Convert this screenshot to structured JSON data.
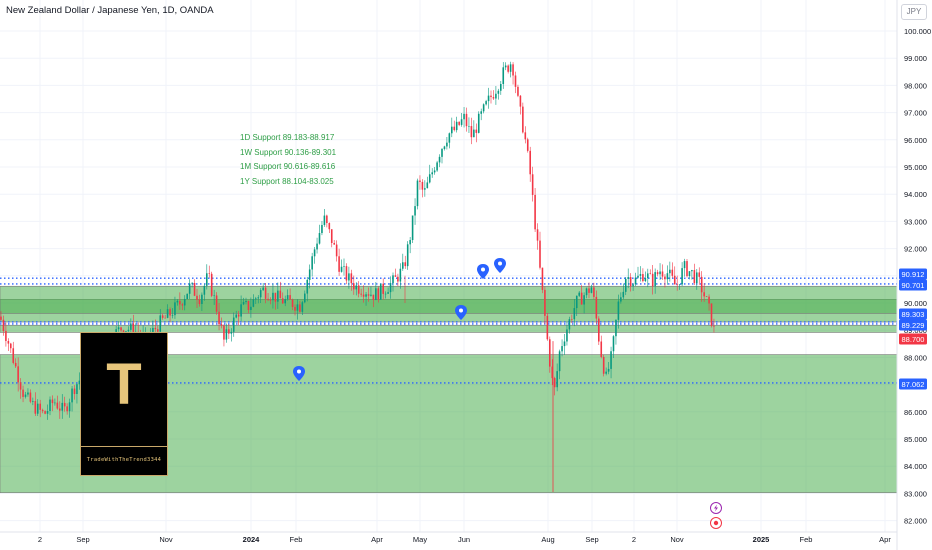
{
  "header": {
    "title": "New Zealand Dollar / Japanese Yen, 1D, OANDA",
    "currency_button": "JPY"
  },
  "logo": {
    "letter": "T",
    "caption": "TradeWithTheTrend3344"
  },
  "annotations": [
    "1D Support 89.183-88.917",
    "1W Support 90.136-89.301",
    "1M Support 90.616-89.616",
    "1Y Support 88.104-83.025"
  ],
  "chart_data": {
    "type": "candlestick",
    "symbol": "NZDJPY",
    "timeframe": "1D",
    "y_ticks": [
      "100.000",
      "99.000",
      "98.000",
      "97.000",
      "96.000",
      "95.000",
      "94.000",
      "93.000",
      "92.000",
      "91.000",
      "90.000",
      "89.000",
      "88.000",
      "87.000",
      "86.000",
      "85.000",
      "84.000",
      "83.000",
      "82.000"
    ],
    "ylim": [
      81.8,
      100.3
    ],
    "x_ticks": [
      "2",
      "Sep",
      "Nov",
      "2024",
      "Feb",
      "Apr",
      "May",
      "Jun",
      "Aug",
      "Sep",
      "2",
      "Nov",
      "2025",
      "Feb",
      "Apr"
    ],
    "price_labels": [
      {
        "value": 90.912,
        "text": "90.912",
        "color": "#2962ff"
      },
      {
        "value": 90.701,
        "text": "90.701",
        "color": "#2962ff"
      },
      {
        "value": 89.303,
        "text": "89.303",
        "color": "#2962ff"
      },
      {
        "value": 89.229,
        "text": "89.229",
        "color": "#2962ff"
      },
      {
        "value": 88.7,
        "text": "88.700",
        "color": "#f23645"
      },
      {
        "value": 87.062,
        "text": "87.062",
        "color": "#2962ff"
      }
    ],
    "support_zones": [
      {
        "name": "1D Support",
        "high": 89.183,
        "low": 88.917
      },
      {
        "name": "1W Support",
        "high": 90.136,
        "low": 89.301
      },
      {
        "name": "1M Support",
        "high": 90.616,
        "low": 89.616
      },
      {
        "name": "1Y Support",
        "high": 88.104,
        "low": 83.025
      }
    ],
    "dotted_levels": [
      90.912,
      90.701,
      89.303,
      89.229,
      87.062
    ],
    "price_path": [
      [
        0,
        89.5
      ],
      [
        8,
        88.6
      ],
      [
        16,
        87.6
      ],
      [
        24,
        86.6
      ],
      [
        34,
        86.2
      ],
      [
        44,
        85.9
      ],
      [
        54,
        86.4
      ],
      [
        64,
        86.0
      ],
      [
        74,
        86.9
      ],
      [
        86,
        87.5
      ],
      [
        98,
        88.2
      ],
      [
        110,
        88.7
      ],
      [
        122,
        89.1
      ],
      [
        134,
        89.0
      ],
      [
        146,
        88.6
      ],
      [
        158,
        89.2
      ],
      [
        170,
        89.6
      ],
      [
        180,
        90.0
      ],
      [
        190,
        90.6
      ],
      [
        200,
        90.2
      ],
      [
        208,
        91.0
      ],
      [
        216,
        89.9
      ],
      [
        224,
        88.6
      ],
      [
        232,
        89.2
      ],
      [
        240,
        89.8
      ],
      [
        250,
        89.9
      ],
      [
        262,
        90.5
      ],
      [
        272,
        90.3
      ],
      [
        282,
        90.1
      ],
      [
        292,
        90.0
      ],
      [
        300,
        89.9
      ],
      [
        308,
        91.0
      ],
      [
        316,
        92.2
      ],
      [
        324,
        93.1
      ],
      [
        332,
        92.3
      ],
      [
        340,
        91.3
      ],
      [
        348,
        90.9
      ],
      [
        356,
        90.6
      ],
      [
        364,
        90.5
      ],
      [
        374,
        90.3
      ],
      [
        384,
        90.5
      ],
      [
        394,
        90.8
      ],
      [
        404,
        91.3
      ],
      [
        412,
        92.8
      ],
      [
        418,
        94.5
      ],
      [
        424,
        94.0
      ],
      [
        432,
        94.8
      ],
      [
        440,
        95.6
      ],
      [
        448,
        96.2
      ],
      [
        456,
        96.4
      ],
      [
        464,
        96.8
      ],
      [
        472,
        96.1
      ],
      [
        480,
        96.8
      ],
      [
        488,
        97.4
      ],
      [
        496,
        97.9
      ],
      [
        504,
        98.5
      ],
      [
        512,
        98.9
      ],
      [
        518,
        97.4
      ],
      [
        524,
        96.3
      ],
      [
        530,
        94.8
      ],
      [
        536,
        92.6
      ],
      [
        542,
        90.5
      ],
      [
        548,
        88.4
      ],
      [
        554,
        86.6
      ],
      [
        560,
        88.3
      ],
      [
        568,
        89.2
      ],
      [
        576,
        90.0
      ],
      [
        584,
        90.3
      ],
      [
        592,
        90.6
      ],
      [
        600,
        88.4
      ],
      [
        606,
        87.2
      ],
      [
        612,
        88.1
      ],
      [
        618,
        89.9
      ],
      [
        626,
        91.0
      ],
      [
        634,
        90.8
      ],
      [
        644,
        91.1
      ],
      [
        652,
        90.8
      ],
      [
        660,
        91.2
      ],
      [
        668,
        91.1
      ],
      [
        676,
        90.6
      ],
      [
        684,
        91.3
      ],
      [
        692,
        91.1
      ],
      [
        700,
        90.7
      ],
      [
        708,
        89.9
      ],
      [
        716,
        88.7
      ]
    ]
  }
}
